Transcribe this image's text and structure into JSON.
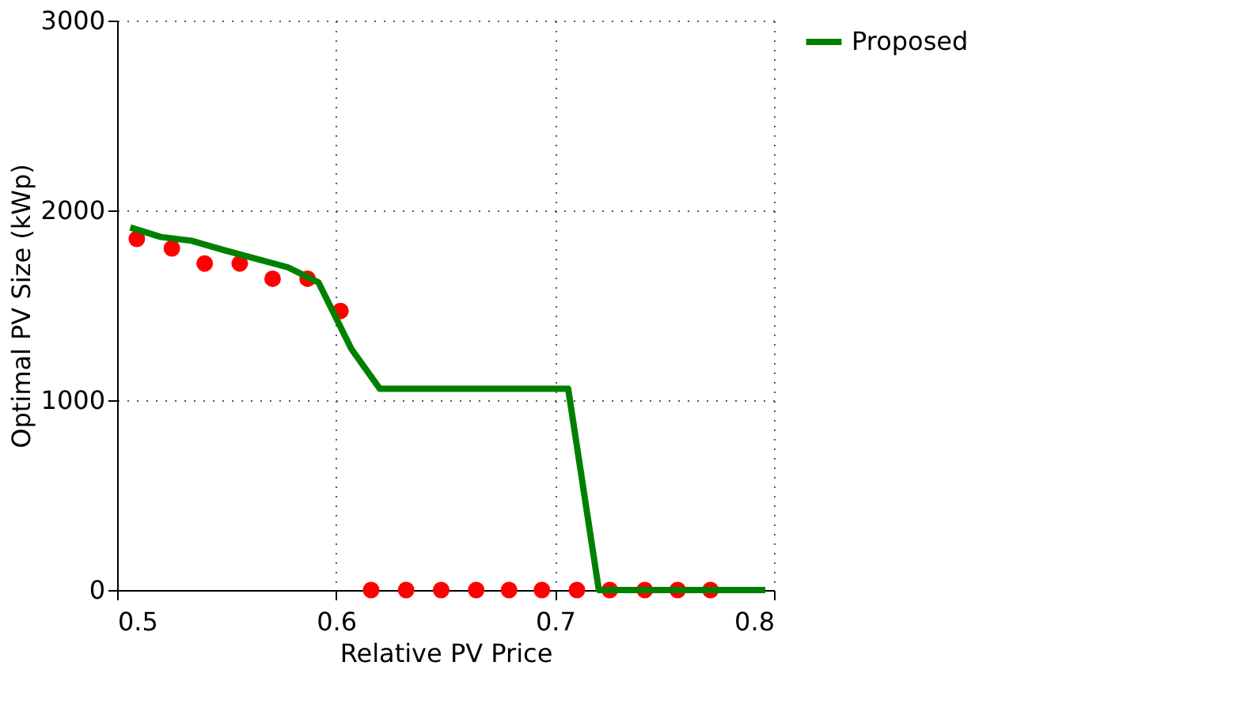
{
  "chart_data": {
    "type": "scatter",
    "xlabel": "Relative PV Price",
    "ylabel": "Optimal PV Size (kWp)",
    "xlim": [
      0.5,
      0.8
    ],
    "xticks": [
      0.5,
      0.6,
      0.7,
      0.8
    ],
    "ylim": [
      0,
      3000
    ],
    "yticks": [
      0,
      1000,
      2000,
      3000
    ],
    "grid": true,
    "legend": "top right",
    "series": [
      {
        "color": "#ff0000",
        "marker": "circle",
        "x": [
          0.509,
          0.525,
          0.54,
          0.556,
          0.571,
          0.587,
          0.602,
          0.616,
          0.632,
          0.648,
          0.664,
          0.679,
          0.694,
          0.71,
          0.725,
          0.741,
          0.756,
          0.771
        ],
        "values": [
          1850,
          1800,
          1720,
          1720,
          1640,
          1640,
          1470,
          0,
          0,
          0,
          0,
          0,
          0,
          0,
          0,
          0,
          0,
          0
        ]
      },
      {
        "type": "line",
        "name": "Proposed",
        "color": "#008000",
        "line_style": "solid",
        "x": [
          0.506,
          0.52,
          0.534,
          0.549,
          0.578,
          0.592,
          0.607,
          0.62,
          0.706,
          0.72,
          0.796
        ],
        "values": [
          1910,
          1860,
          1840,
          1790,
          1700,
          1620,
          1270,
          1060,
          1060,
          0,
          0
        ]
      }
    ]
  }
}
